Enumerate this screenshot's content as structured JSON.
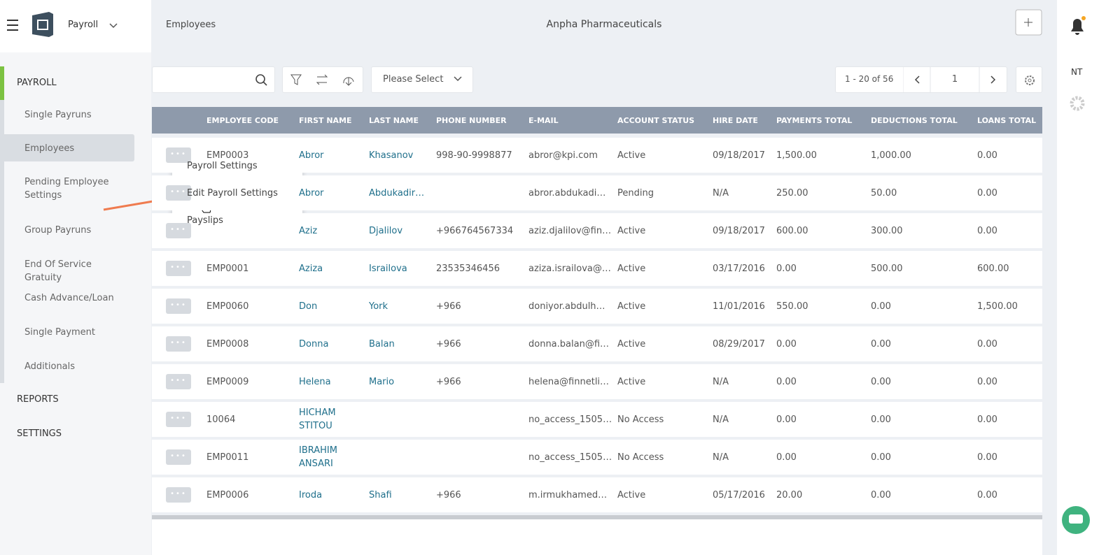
{
  "header": {
    "app": "Payroll",
    "breadcrumb": "Employees",
    "company": "Anpha Pharmaceuticals",
    "user": "NT"
  },
  "sidebar": {
    "sections": [
      {
        "title": "PAYROLL",
        "items": [
          "Single Payruns",
          "Employees",
          "Pending Employee Settings",
          "Group Payruns",
          "End Of Service Gratuity",
          "Cash Advance/Loan",
          "Single Payment",
          "Additionals"
        ]
      },
      {
        "title": "REPORTS"
      },
      {
        "title": "SETTINGS"
      }
    ]
  },
  "toolbar": {
    "select": "Please Select",
    "range": "1 - 20 of 56",
    "page": "1"
  },
  "table": {
    "columns": [
      "EMPLOYEE CODE",
      "FIRST NAME",
      "LAST NAME",
      "PHONE NUMBER",
      "E-MAIL",
      "ACCOUNT STATUS",
      "HIRE DATE",
      "PAYMENTS TOTAL",
      "DEDUCTIONS TOTAL",
      "LOANS TOTAL"
    ],
    "rows": [
      [
        "EMP0003",
        "Abror",
        "Khasanov",
        "998-90-9998877",
        "abror@kpi.com",
        "Active",
        "09/18/2017",
        "1,500.00",
        "1,000.00",
        "0.00"
      ],
      [
        null,
        "Abror",
        "Abdukadir…",
        null,
        "abror.abdukadi…",
        "Pending",
        "N/A",
        "250.00",
        "50.00",
        "0.00"
      ],
      [
        null,
        "Aziz",
        "Djalilov",
        "+966764567334",
        "aziz.djalilov@fin…",
        "Active",
        "09/18/2017",
        "600.00",
        "300.00",
        "0.00"
      ],
      [
        "EMP0001",
        "Aziza",
        "Israilova",
        "23535346456",
        "aziza.israilova@…",
        "Active",
        "03/17/2016",
        "0.00",
        "500.00",
        "600.00"
      ],
      [
        "EMP0060",
        "Don",
        "York",
        "+966",
        "doniyor.abdulh…",
        "Active",
        "11/01/2016",
        "550.00",
        "0.00",
        "1,500.00"
      ],
      [
        "EMP0008",
        "Donna",
        "Balan",
        "+966",
        "donna.balan@fi…",
        "Active",
        "08/29/2017",
        "0.00",
        "0.00",
        "0.00"
      ],
      [
        "EMP0009",
        "Helena",
        "Mario",
        "+966",
        "helena@finnetli…",
        "Active",
        "N/A",
        "0.00",
        "0.00",
        "0.00"
      ],
      [
        "10064",
        "HICHAM STITOU",
        null,
        null,
        "no_access_1505…",
        "No Access",
        "N/A",
        "0.00",
        "0.00",
        "0.00"
      ],
      [
        "EMP0011",
        "IBRAHIM ANSARI",
        null,
        null,
        "no_access_1505…",
        "No Access",
        "N/A",
        "0.00",
        "0.00",
        "0.00"
      ],
      [
        "EMP0006",
        "Iroda",
        "Shafi",
        "+966",
        "m.irmukhamed…",
        "Active",
        "05/17/2016",
        "20.00",
        "0.00",
        "0.00"
      ]
    ]
  },
  "menu": [
    "Payroll Settings",
    "Edit Payroll Settings",
    "Payslips"
  ]
}
